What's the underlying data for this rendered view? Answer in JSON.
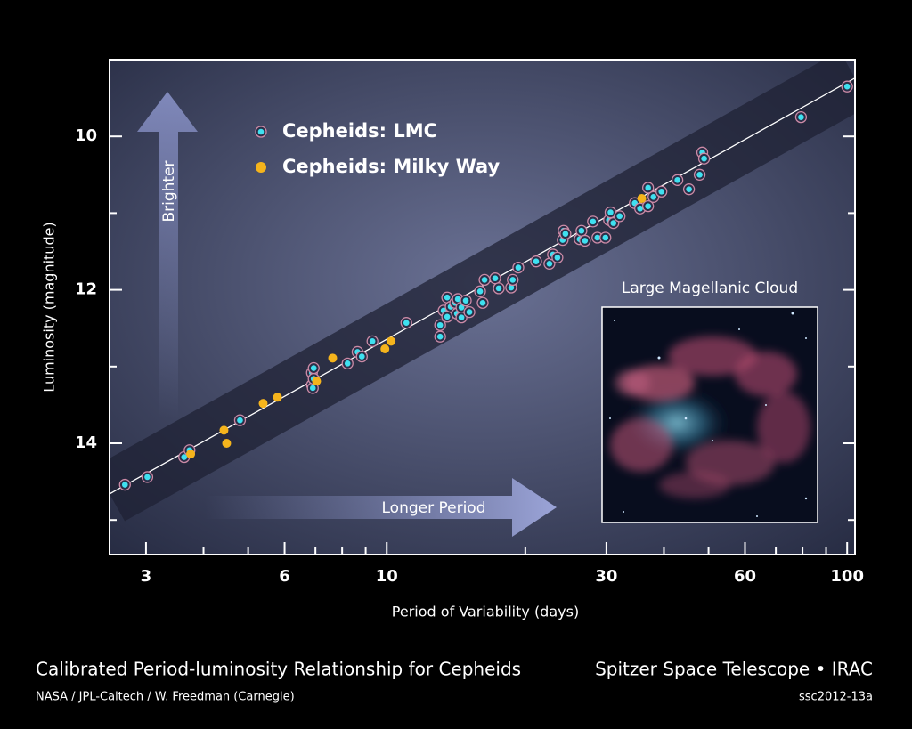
{
  "chart_data": {
    "type": "scatter",
    "x_label": "Period of Variability (days)",
    "y_label": "Luminosity (magnitude)",
    "x_scale": "log",
    "invert_y": true,
    "xlim": [
      2.5,
      104
    ],
    "ylim": [
      9.0,
      15.45
    ],
    "xticks": [
      3,
      6,
      10,
      30,
      60,
      100
    ],
    "xticks_minor": [
      4,
      5,
      7,
      8,
      9,
      20,
      40,
      50,
      70,
      80,
      90
    ],
    "yticks": [
      10,
      12,
      14
    ],
    "yticks_minor": [
      11,
      13,
      15
    ],
    "legend_position": "upper left",
    "marker_edge": "#cc8aa6",
    "series": [
      {
        "name": "Cepheids: LMC",
        "color": "#3fe0f0",
        "x": [
          2.7,
          3.02,
          3.63,
          3.73,
          4.8,
          6.88,
          6.88,
          6.91,
          6.94,
          6.94,
          8.22,
          8.64,
          8.83,
          9.31,
          11.03,
          13.06,
          13.06,
          13.53,
          13.29,
          13.53,
          13.77,
          14.08,
          14.21,
          14.27,
          14.53,
          14.85,
          14.53,
          15.12,
          15.95,
          16.16,
          16.31,
          17.2,
          17.51,
          18.63,
          18.78,
          19.31,
          21.11,
          22.56,
          22.96,
          23.48,
          24.11,
          24.22,
          24.44,
          26.24,
          26.48,
          26.95,
          28.05,
          28.68,
          29.85,
          30.39,
          30.62,
          31.07,
          32.05,
          34.57,
          35.5,
          36.95,
          36.95,
          37.96,
          39.51,
          42.79,
          45.34,
          47.82,
          48.46,
          48.9,
          79.4,
          100
        ],
        "y": [
          14.54,
          14.44,
          14.18,
          14.09,
          13.7,
          13.08,
          13.24,
          13.28,
          13.16,
          13.02,
          12.96,
          12.81,
          12.87,
          12.67,
          12.43,
          12.46,
          12.61,
          12.1,
          12.27,
          12.35,
          12.22,
          12.17,
          12.31,
          12.12,
          12.23,
          12.14,
          12.36,
          12.29,
          12.02,
          12.17,
          11.87,
          11.85,
          11.98,
          11.97,
          11.87,
          11.71,
          11.63,
          11.66,
          11.54,
          11.58,
          11.35,
          11.23,
          11.27,
          11.34,
          11.23,
          11.36,
          11.11,
          11.32,
          11.32,
          11.09,
          10.99,
          11.13,
          11.04,
          10.87,
          10.94,
          10.67,
          10.91,
          10.79,
          10.72,
          10.57,
          10.69,
          10.5,
          10.21,
          10.29,
          9.75,
          9.35
        ]
      },
      {
        "name": "Cepheids: Milky Way",
        "color": "#f5b41c",
        "x": [
          3.75,
          4.43,
          4.49,
          5.39,
          5.79,
          7.04,
          7.63,
          9.91,
          10.22,
          35.8
        ],
        "y": [
          14.14,
          13.83,
          14.0,
          13.48,
          13.4,
          13.19,
          12.89,
          12.77,
          12.67,
          10.81
        ]
      }
    ],
    "trend_line": {
      "x": [
        2.5,
        104
      ],
      "y": [
        14.66,
        9.24
      ]
    },
    "annotations": {
      "brighter": "Brighter",
      "longer_period": "Longer Period",
      "inset_title": "Large Magellanic Cloud"
    },
    "caption": "Calibrated Period-luminosity Relationship for Cepheids",
    "mission": "Spitzer Space Telescope • IRAC",
    "credit": "NASA / JPL-Caltech / W. Freedman (Carnegie)",
    "image_id": "ssc2012-13a"
  }
}
